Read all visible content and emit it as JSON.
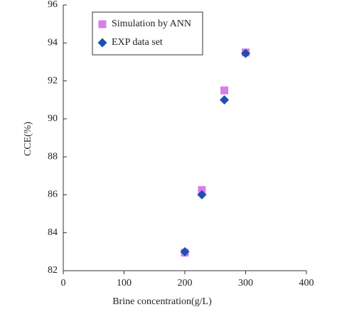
{
  "chart_data": {
    "type": "scatter",
    "x_label": "Brine concentration(g/L)",
    "y_label": "CCE(%)",
    "xlim": [
      0,
      400
    ],
    "xticks": [
      0,
      100,
      200,
      300,
      400
    ],
    "ylim": [
      82,
      96
    ],
    "yticks": [
      82,
      84,
      86,
      88,
      90,
      92,
      94,
      96
    ],
    "legend": "upper left",
    "series": [
      {
        "name": "Simulation by ANN",
        "color": "#d97ee8",
        "marker": "square",
        "x": [
          200,
          228,
          265,
          300
        ],
        "values": [
          82.95,
          86.25,
          91.5,
          93.5
        ]
      },
      {
        "name": "EXP data set",
        "color": "#1f4fb0",
        "marker": "diamond",
        "x": [
          200,
          228,
          265,
          300
        ],
        "values": [
          83.0,
          86.0,
          91.0,
          93.45
        ]
      }
    ]
  }
}
